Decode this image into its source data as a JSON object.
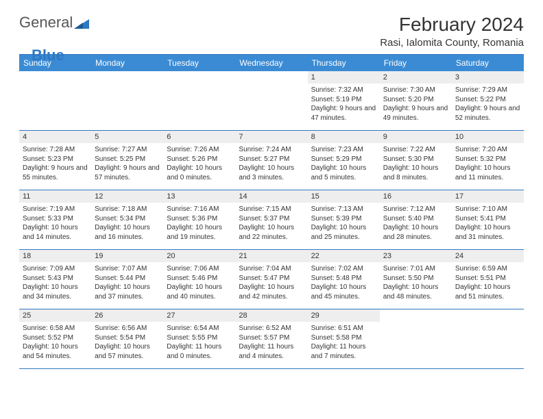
{
  "brand": {
    "part1": "General",
    "part2": "Blue"
  },
  "title": "February 2024",
  "location": "Rasi, Ialomita County, Romania",
  "logo_color": "#2f78c2",
  "header_bg": "#3b8bd4",
  "header_fg": "#ffffff",
  "daynum_bg": "#eeeeee",
  "rule_color": "#2f78c2",
  "columns": [
    "Sunday",
    "Monday",
    "Tuesday",
    "Wednesday",
    "Thursday",
    "Friday",
    "Saturday"
  ],
  "weeks": [
    [
      null,
      null,
      null,
      null,
      {
        "n": "1",
        "sunrise": "7:32 AM",
        "sunset": "5:19 PM",
        "daylight": "9 hours and 47 minutes."
      },
      {
        "n": "2",
        "sunrise": "7:30 AM",
        "sunset": "5:20 PM",
        "daylight": "9 hours and 49 minutes."
      },
      {
        "n": "3",
        "sunrise": "7:29 AM",
        "sunset": "5:22 PM",
        "daylight": "9 hours and 52 minutes."
      }
    ],
    [
      {
        "n": "4",
        "sunrise": "7:28 AM",
        "sunset": "5:23 PM",
        "daylight": "9 hours and 55 minutes."
      },
      {
        "n": "5",
        "sunrise": "7:27 AM",
        "sunset": "5:25 PM",
        "daylight": "9 hours and 57 minutes."
      },
      {
        "n": "6",
        "sunrise": "7:26 AM",
        "sunset": "5:26 PM",
        "daylight": "10 hours and 0 minutes."
      },
      {
        "n": "7",
        "sunrise": "7:24 AM",
        "sunset": "5:27 PM",
        "daylight": "10 hours and 3 minutes."
      },
      {
        "n": "8",
        "sunrise": "7:23 AM",
        "sunset": "5:29 PM",
        "daylight": "10 hours and 5 minutes."
      },
      {
        "n": "9",
        "sunrise": "7:22 AM",
        "sunset": "5:30 PM",
        "daylight": "10 hours and 8 minutes."
      },
      {
        "n": "10",
        "sunrise": "7:20 AM",
        "sunset": "5:32 PM",
        "daylight": "10 hours and 11 minutes."
      }
    ],
    [
      {
        "n": "11",
        "sunrise": "7:19 AM",
        "sunset": "5:33 PM",
        "daylight": "10 hours and 14 minutes."
      },
      {
        "n": "12",
        "sunrise": "7:18 AM",
        "sunset": "5:34 PM",
        "daylight": "10 hours and 16 minutes."
      },
      {
        "n": "13",
        "sunrise": "7:16 AM",
        "sunset": "5:36 PM",
        "daylight": "10 hours and 19 minutes."
      },
      {
        "n": "14",
        "sunrise": "7:15 AM",
        "sunset": "5:37 PM",
        "daylight": "10 hours and 22 minutes."
      },
      {
        "n": "15",
        "sunrise": "7:13 AM",
        "sunset": "5:39 PM",
        "daylight": "10 hours and 25 minutes."
      },
      {
        "n": "16",
        "sunrise": "7:12 AM",
        "sunset": "5:40 PM",
        "daylight": "10 hours and 28 minutes."
      },
      {
        "n": "17",
        "sunrise": "7:10 AM",
        "sunset": "5:41 PM",
        "daylight": "10 hours and 31 minutes."
      }
    ],
    [
      {
        "n": "18",
        "sunrise": "7:09 AM",
        "sunset": "5:43 PM",
        "daylight": "10 hours and 34 minutes."
      },
      {
        "n": "19",
        "sunrise": "7:07 AM",
        "sunset": "5:44 PM",
        "daylight": "10 hours and 37 minutes."
      },
      {
        "n": "20",
        "sunrise": "7:06 AM",
        "sunset": "5:46 PM",
        "daylight": "10 hours and 40 minutes."
      },
      {
        "n": "21",
        "sunrise": "7:04 AM",
        "sunset": "5:47 PM",
        "daylight": "10 hours and 42 minutes."
      },
      {
        "n": "22",
        "sunrise": "7:02 AM",
        "sunset": "5:48 PM",
        "daylight": "10 hours and 45 minutes."
      },
      {
        "n": "23",
        "sunrise": "7:01 AM",
        "sunset": "5:50 PM",
        "daylight": "10 hours and 48 minutes."
      },
      {
        "n": "24",
        "sunrise": "6:59 AM",
        "sunset": "5:51 PM",
        "daylight": "10 hours and 51 minutes."
      }
    ],
    [
      {
        "n": "25",
        "sunrise": "6:58 AM",
        "sunset": "5:52 PM",
        "daylight": "10 hours and 54 minutes."
      },
      {
        "n": "26",
        "sunrise": "6:56 AM",
        "sunset": "5:54 PM",
        "daylight": "10 hours and 57 minutes."
      },
      {
        "n": "27",
        "sunrise": "6:54 AM",
        "sunset": "5:55 PM",
        "daylight": "11 hours and 0 minutes."
      },
      {
        "n": "28",
        "sunrise": "6:52 AM",
        "sunset": "5:57 PM",
        "daylight": "11 hours and 4 minutes."
      },
      {
        "n": "29",
        "sunrise": "6:51 AM",
        "sunset": "5:58 PM",
        "daylight": "11 hours and 7 minutes."
      },
      null,
      null
    ]
  ],
  "labels": {
    "sunrise": "Sunrise: ",
    "sunset": "Sunset: ",
    "daylight": "Daylight: "
  }
}
